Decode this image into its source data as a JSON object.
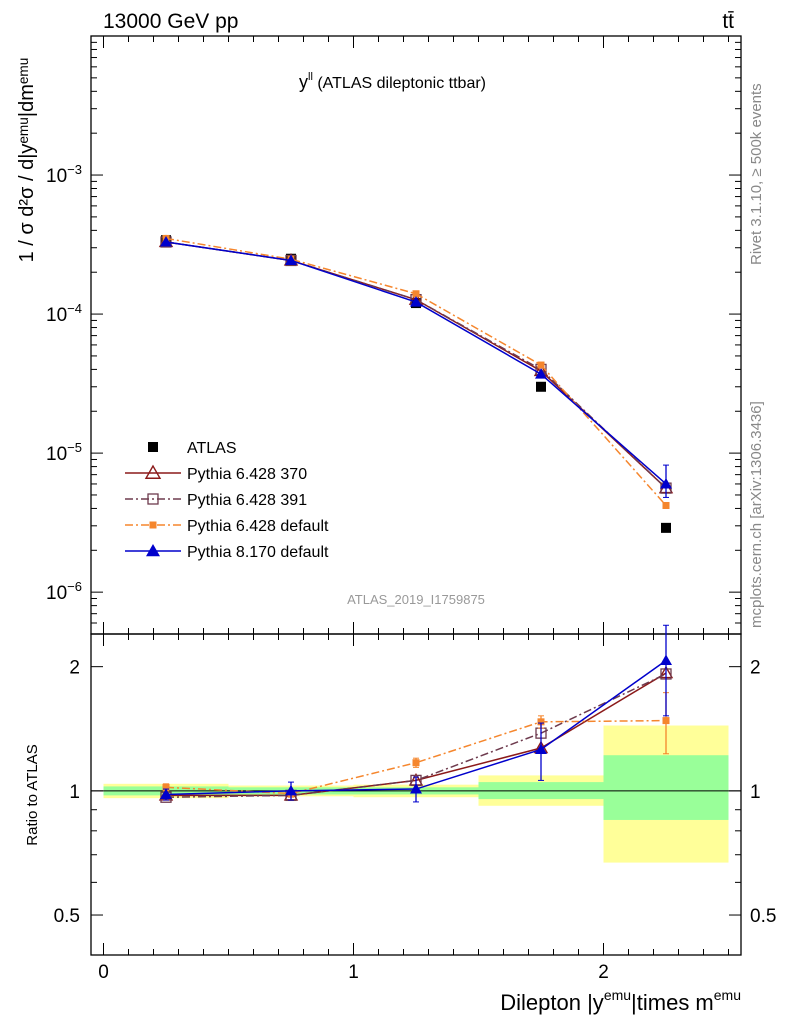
{
  "header": {
    "left_label": "13000 GeV pp",
    "right_label": "tt̄"
  },
  "side_labels": {
    "rivet": "Rivet 3.1.10, ≥ 500k events",
    "mcplots": "mcplots.cern.ch [arXiv:1306.3436]"
  },
  "chart_data": [
    {
      "type": "scatter",
      "panel": "main",
      "title_main": "y",
      "title_sup": "ll",
      "title_rest": " (ATLAS dileptonic ttbar)",
      "watermark": "ATLAS_2019_I1759875",
      "ylabel": "1 / σ  d²σ / d|yᵉᵐᵘ|dmᵉᵐᵘ",
      "yscale": "log",
      "ylim": [
        5e-07,
        0.01
      ],
      "xlim": [
        -0.05,
        2.55
      ],
      "yticks": [
        {
          "value": 0.001,
          "base": "10",
          "exp": "−3"
        },
        {
          "value": 0.0001,
          "base": "10",
          "exp": "−4"
        },
        {
          "value": 1e-05,
          "base": "10",
          "exp": "−5"
        },
        {
          "value": 1e-06,
          "base": "10",
          "exp": "−6"
        }
      ],
      "legend_position": "bottom-left",
      "legend": [
        {
          "label": "ATLAS",
          "series": "atlas"
        },
        {
          "label": "Pythia 6.428 370",
          "series": "p370"
        },
        {
          "label": "Pythia 6.428 391",
          "series": "p391"
        },
        {
          "label": "Pythia 6.428 default",
          "series": "p6def"
        },
        {
          "label": "Pythia 8.170 default",
          "series": "p8def"
        }
      ],
      "series": [
        {
          "id": "atlas",
          "color": "#000000",
          "marker": "filled-square",
          "line": "none",
          "x": [
            0.25,
            0.75,
            1.25,
            1.75,
            2.25
          ],
          "y": [
            0.00034,
            0.00025,
            0.00012,
            3e-05,
            2.9e-06
          ]
        },
        {
          "id": "p370",
          "color": "#8b1a1a",
          "marker": "open-triangle",
          "line": "solid",
          "x": [
            0.25,
            0.75,
            1.25,
            1.75,
            2.25
          ],
          "y": [
            0.00033,
            0.000243,
            0.000127,
            3.9e-05,
            5.6e-06
          ]
        },
        {
          "id": "p391",
          "color": "#6e3b4e",
          "marker": "open-square",
          "line": "dashdot",
          "x": [
            0.25,
            0.75,
            1.25,
            1.75,
            2.25
          ],
          "y": [
            0.00033,
            0.000243,
            0.000127,
            4e-05,
            5.6e-06
          ]
        },
        {
          "id": "p6def",
          "color": "#f5862d",
          "marker": "filled-small-square",
          "line": "dashdot",
          "x": [
            0.25,
            0.75,
            1.25,
            1.75,
            2.25
          ],
          "y": [
            0.00035,
            0.000248,
            0.00014,
            4.3e-05,
            4.2e-06
          ]
        },
        {
          "id": "p8def",
          "color": "#0000cc",
          "marker": "filled-triangle",
          "line": "solid",
          "x": [
            0.25,
            0.75,
            1.25,
            1.75,
            2.25
          ],
          "y": [
            0.00033,
            0.000243,
            0.000122,
            3.7e-05,
            6e-06
          ],
          "err_low": [
            0,
            0,
            0,
            0,
            1.2e-06
          ],
          "err_high": [
            0,
            0,
            0,
            0,
            2.2e-06
          ]
        }
      ]
    },
    {
      "type": "scatter",
      "panel": "ratio",
      "ylabel": "Ratio to ATLAS",
      "xlabel_main": "Dilepton |y",
      "xlabel_sup1": "emu",
      "xlabel_mid": "|times m",
      "xlabel_sup2": "emu",
      "ylim": [
        0.4,
        2.4
      ],
      "xlim": [
        -0.05,
        2.55
      ],
      "xticks": [
        "0",
        "1",
        "2"
      ],
      "xtick_values": [
        0,
        1,
        2
      ],
      "yticks": [
        "0.5",
        "1",
        "2"
      ],
      "ytick_values": [
        0.5,
        1,
        2
      ],
      "bands": [
        {
          "x0": 0,
          "x1": 0.5,
          "y_lo": 0.96,
          "y_hi": 1.04,
          "inner_lo": 0.975,
          "inner_hi": 1.025
        },
        {
          "x0": 0.5,
          "x1": 1.0,
          "y_lo": 0.97,
          "y_hi": 1.03,
          "inner_lo": 0.98,
          "inner_hi": 1.02
        },
        {
          "x0": 1.0,
          "x1": 1.5,
          "y_lo": 0.965,
          "y_hi": 1.035,
          "inner_lo": 0.98,
          "inner_hi": 1.02
        },
        {
          "x0": 1.5,
          "x1": 2.0,
          "y_lo": 0.92,
          "y_hi": 1.09,
          "inner_lo": 0.955,
          "inner_hi": 1.05
        },
        {
          "x0": 2.0,
          "x1": 2.5,
          "y_lo": 0.67,
          "y_hi": 1.44,
          "inner_lo": 0.85,
          "inner_hi": 1.22
        }
      ],
      "series": [
        {
          "id": "p370",
          "color": "#8b1a1a",
          "marker": "open-triangle",
          "line": "solid",
          "x": [
            0.25,
            0.75,
            1.25,
            1.75,
            2.25
          ],
          "y": [
            0.975,
            0.975,
            1.06,
            1.27,
            1.93
          ]
        },
        {
          "id": "p391",
          "color": "#6e3b4e",
          "marker": "open-square",
          "line": "dashdot",
          "x": [
            0.25,
            0.75,
            1.25,
            1.75,
            2.25
          ],
          "y": [
            0.965,
            0.975,
            1.06,
            1.38,
            1.92
          ]
        },
        {
          "id": "p6def",
          "color": "#f5862d",
          "marker": "filled-small-square",
          "line": "dashdot",
          "x": [
            0.25,
            0.75,
            1.25,
            1.75,
            2.25
          ],
          "y": [
            1.02,
            0.985,
            1.17,
            1.47,
            1.48
          ],
          "err_low": [
            0.02,
            0.02,
            0.03,
            0.05,
            0.25
          ],
          "err_high": [
            0.02,
            0.02,
            0.03,
            0.05,
            0.25
          ]
        },
        {
          "id": "p8def",
          "color": "#0000cc",
          "marker": "filled-triangle",
          "line": "solid",
          "x": [
            0.25,
            0.75,
            1.25,
            1.75,
            2.25
          ],
          "y": [
            0.98,
            1.0,
            1.01,
            1.26,
            2.07
          ],
          "err_low": [
            0.03,
            0.05,
            0.07,
            0.2,
            0.55
          ],
          "err_high": [
            0.03,
            0.05,
            0.07,
            0.2,
            0.45
          ]
        }
      ]
    }
  ]
}
